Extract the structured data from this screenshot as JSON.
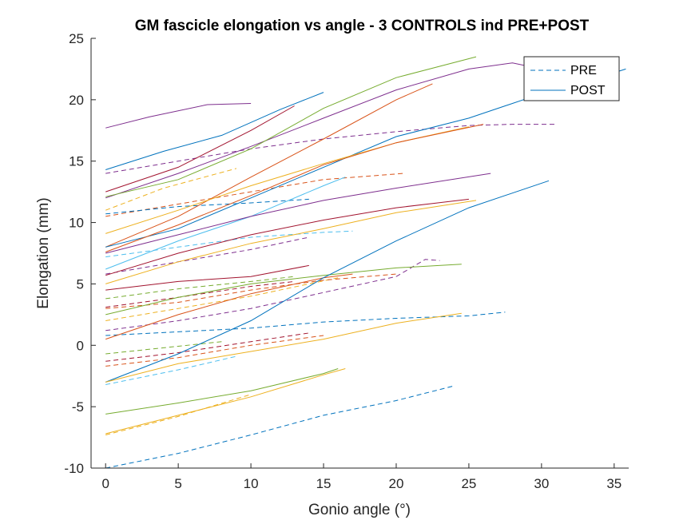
{
  "chart_data": {
    "type": "line",
    "title": "GM fascicle elongation vs angle - 3 CONTROLS ind PRE+POST",
    "xlabel": "Gonio angle (°)",
    "ylabel": "Elongation (mm)",
    "xlim": [
      -1,
      36
    ],
    "ylim": [
      -10,
      25
    ],
    "xticks": [
      "0",
      "5",
      "10",
      "15",
      "20",
      "25",
      "30",
      "35"
    ],
    "yticks": [
      "-10",
      "-5",
      "0",
      "5",
      "10",
      "15",
      "20",
      "25"
    ],
    "grid": false,
    "legend": {
      "placement": "top-right",
      "entries": [
        {
          "name": "PRE",
          "style": "dashed",
          "color": "#0072BD"
        },
        {
          "name": "POST",
          "style": "solid",
          "color": "#0072BD"
        }
      ]
    },
    "colors": [
      "#0072BD",
      "#D95319",
      "#EDB120",
      "#7E2F8E",
      "#77AC30",
      "#4DBEEE",
      "#A2142F"
    ],
    "series": [
      {
        "group": "PRE",
        "color": "#7E2F8E",
        "x": [
          0,
          5,
          10,
          15,
          20,
          25,
          28,
          31
        ],
        "y": [
          14.0,
          15.0,
          16.0,
          16.8,
          17.4,
          17.9,
          18.0,
          18.0
        ]
      },
      {
        "group": "PRE",
        "color": "#EDB120",
        "x": [
          0,
          4,
          9
        ],
        "y": [
          11.0,
          12.8,
          14.4
        ]
      },
      {
        "group": "PRE",
        "color": "#D95319",
        "x": [
          0,
          5,
          10,
          15,
          20.5
        ],
        "y": [
          10.5,
          11.5,
          12.5,
          13.5,
          14.0
        ]
      },
      {
        "group": "PRE",
        "color": "#0072BD",
        "x": [
          0,
          5,
          10,
          14
        ],
        "y": [
          10.7,
          11.3,
          11.6,
          11.9
        ]
      },
      {
        "group": "PRE",
        "color": "#4DBEEE",
        "x": [
          0,
          5,
          10,
          15,
          17
        ],
        "y": [
          7.2,
          8.0,
          8.8,
          9.2,
          9.3
        ]
      },
      {
        "group": "PRE",
        "color": "#7E2F8E",
        "x": [
          0,
          5,
          10,
          14
        ],
        "y": [
          5.8,
          6.8,
          7.8,
          8.8
        ]
      },
      {
        "group": "PRE",
        "color": "#77AC30",
        "x": [
          0,
          5,
          10,
          13
        ],
        "y": [
          3.8,
          4.6,
          5.2,
          5.6
        ]
      },
      {
        "group": "PRE",
        "color": "#EDB120",
        "x": [
          0,
          5,
          10,
          16
        ],
        "y": [
          2.0,
          3.0,
          4.0,
          5.5
        ]
      },
      {
        "group": "PRE",
        "color": "#D95319",
        "x": [
          0,
          5,
          10,
          15,
          20
        ],
        "y": [
          3.0,
          3.5,
          4.5,
          5.3,
          5.8
        ]
      },
      {
        "group": "PRE",
        "color": "#A2142F",
        "x": [
          0,
          5,
          10,
          13
        ],
        "y": [
          3.1,
          3.9,
          4.8,
          5.2
        ]
      },
      {
        "group": "PRE",
        "color": "#7E2F8E",
        "x": [
          0,
          5,
          10,
          15,
          20,
          22,
          23
        ],
        "y": [
          1.2,
          2.0,
          3.0,
          4.3,
          5.6,
          7.0,
          6.9
        ]
      },
      {
        "group": "PRE",
        "color": "#0072BD",
        "x": [
          0,
          5,
          10,
          15,
          20,
          25,
          27.5
        ],
        "y": [
          0.8,
          1.1,
          1.4,
          1.9,
          2.2,
          2.4,
          2.7
        ]
      },
      {
        "group": "PRE",
        "color": "#77AC30",
        "x": [
          0,
          4,
          8
        ],
        "y": [
          -0.7,
          -0.2,
          0.3
        ]
      },
      {
        "group": "PRE",
        "color": "#D95319",
        "x": [
          0,
          5,
          10,
          15
        ],
        "y": [
          -1.7,
          -1.0,
          0.0,
          0.8
        ]
      },
      {
        "group": "PRE",
        "color": "#A2142F",
        "x": [
          0,
          5,
          10,
          14
        ],
        "y": [
          -1.3,
          -0.6,
          0.3,
          1.0
        ]
      },
      {
        "group": "PRE",
        "color": "#4DBEEE",
        "x": [
          0,
          5,
          9
        ],
        "y": [
          -3.2,
          -2.0,
          -0.9
        ]
      },
      {
        "group": "PRE",
        "color": "#EDB120",
        "x": [
          0,
          5,
          10
        ],
        "y": [
          -7.3,
          -5.8,
          -4.0
        ]
      },
      {
        "group": "PRE",
        "color": "#0072BD",
        "x": [
          0,
          5,
          10,
          15,
          20,
          24
        ],
        "y": [
          -10.0,
          -8.8,
          -7.3,
          -5.7,
          -4.5,
          -3.3
        ]
      },
      {
        "group": "POST",
        "color": "#7E2F8E",
        "x": [
          0,
          3,
          7,
          10
        ],
        "y": [
          17.7,
          18.6,
          19.6,
          19.7
        ]
      },
      {
        "group": "POST",
        "color": "#0072BD",
        "x": [
          0,
          4,
          8,
          12,
          15
        ],
        "y": [
          14.3,
          15.8,
          17.1,
          19.2,
          20.6
        ]
      },
      {
        "group": "POST",
        "color": "#7E2F8E",
        "x": [
          0,
          5,
          10,
          15,
          20,
          25,
          28,
          30,
          33
        ],
        "y": [
          12.0,
          14.0,
          16.2,
          18.5,
          20.8,
          22.5,
          23.0,
          22.5,
          22.4
        ]
      },
      {
        "group": "POST",
        "color": "#77AC30",
        "x": [
          0,
          5,
          10,
          15,
          20,
          25.5
        ],
        "y": [
          12.1,
          13.5,
          16.0,
          19.3,
          21.8,
          23.5
        ]
      },
      {
        "group": "POST",
        "color": "#A2142F",
        "x": [
          0,
          5,
          10,
          13
        ],
        "y": [
          12.5,
          14.5,
          17.5,
          19.5
        ]
      },
      {
        "group": "POST",
        "color": "#D95319",
        "x": [
          0,
          5,
          10,
          15,
          20,
          22.5
        ],
        "y": [
          8.0,
          10.5,
          13.7,
          16.8,
          20.0,
          21.3
        ]
      },
      {
        "group": "POST",
        "color": "#0072BD",
        "x": [
          0,
          5,
          10,
          15,
          20,
          25,
          30,
          35,
          35.8
        ],
        "y": [
          8.0,
          9.5,
          12.0,
          14.5,
          17.0,
          18.5,
          20.5,
          22.2,
          22.5
        ]
      },
      {
        "group": "POST",
        "color": "#EDB120",
        "x": [
          0,
          5,
          10,
          15,
          20,
          25
        ],
        "y": [
          9.1,
          11.0,
          13.0,
          14.8,
          16.5,
          17.8
        ]
      },
      {
        "group": "POST",
        "color": "#D95319",
        "x": [
          0,
          5,
          10,
          15,
          20,
          26
        ],
        "y": [
          7.6,
          9.8,
          12.2,
          14.7,
          16.5,
          18.0
        ]
      },
      {
        "group": "POST",
        "color": "#4DBEEE",
        "x": [
          0,
          5,
          10,
          15,
          16.5
        ],
        "y": [
          6.2,
          8.5,
          10.5,
          13.0,
          13.7
        ]
      },
      {
        "group": "POST",
        "color": "#7E2F8E",
        "x": [
          0,
          5,
          10,
          15,
          20,
          26.5
        ],
        "y": [
          7.5,
          9.0,
          10.5,
          11.8,
          12.8,
          14.0
        ]
      },
      {
        "group": "POST",
        "color": "#A2142F",
        "x": [
          0,
          5,
          10,
          15,
          20,
          25
        ],
        "y": [
          5.7,
          7.5,
          9.0,
          10.2,
          11.2,
          11.9
        ]
      },
      {
        "group": "POST",
        "color": "#EDB120",
        "x": [
          0,
          5,
          10,
          15,
          20,
          25.5
        ],
        "y": [
          5.0,
          6.8,
          8.3,
          9.5,
          10.8,
          11.8
        ]
      },
      {
        "group": "POST",
        "color": "#A2142F",
        "x": [
          0,
          5,
          10,
          14
        ],
        "y": [
          4.5,
          5.2,
          5.6,
          6.5
        ]
      },
      {
        "group": "POST",
        "color": "#77AC30",
        "x": [
          0,
          5,
          10,
          15,
          20,
          24.5
        ],
        "y": [
          2.5,
          3.9,
          5.0,
          5.7,
          6.3,
          6.6
        ]
      },
      {
        "group": "POST",
        "color": "#D95319",
        "x": [
          0,
          5,
          10,
          15,
          17
        ],
        "y": [
          0.5,
          2.5,
          4.2,
          5.5,
          5.8
        ]
      },
      {
        "group": "POST",
        "color": "#0072BD",
        "x": [
          0,
          5,
          10,
          15,
          20,
          25,
          30.5
        ],
        "y": [
          -3.0,
          -0.7,
          2.0,
          5.5,
          8.5,
          11.2,
          13.4
        ]
      },
      {
        "group": "POST",
        "color": "#EDB120",
        "x": [
          0,
          5,
          10,
          15,
          20,
          24.5
        ],
        "y": [
          -3.0,
          -1.5,
          -0.5,
          0.5,
          1.8,
          2.6
        ]
      },
      {
        "group": "POST",
        "color": "#77AC30",
        "x": [
          0,
          5,
          10,
          15,
          16
        ],
        "y": [
          -5.6,
          -4.7,
          -3.7,
          -2.3,
          -1.9
        ]
      },
      {
        "group": "POST",
        "color": "#EDB120",
        "x": [
          0,
          5,
          10,
          15,
          16.5
        ],
        "y": [
          -7.2,
          -5.7,
          -4.2,
          -2.4,
          -1.9
        ]
      }
    ]
  }
}
